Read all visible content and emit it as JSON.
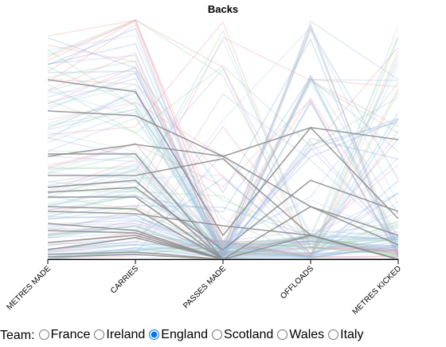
{
  "chart_data": {
    "type": "parallel-coordinates",
    "title": "Backs",
    "axes": [
      "METRES MADE",
      "CARRIES",
      "PASSES MADE",
      "OFFLOADS",
      "METRES KICKED"
    ],
    "normalized_axes": true,
    "selected_team": "England",
    "highlight_color": "#8c8c8c",
    "background_colors": {
      "France": "#7aa6d6",
      "Ireland": "#8ccfa0",
      "Scotland": "#9db4e6",
      "Wales": "#e89aa6",
      "Italy": "#a9d0ec"
    },
    "series": [
      {
        "team": "England",
        "values": [
          0.75,
          0.7,
          0.1,
          0.55,
          0.5
        ]
      },
      {
        "team": "England",
        "values": [
          0.62,
          0.6,
          0.43,
          0.55,
          0.17
        ]
      },
      {
        "team": "England",
        "values": [
          0.43,
          0.48,
          0.43,
          0.22,
          0.1
        ]
      },
      {
        "team": "England",
        "values": [
          0.44,
          0.44,
          0.0,
          0.0,
          0.0
        ]
      },
      {
        "team": "England",
        "values": [
          0.35,
          0.35,
          0.42,
          0.1,
          0.0
        ]
      },
      {
        "team": "England",
        "values": [
          0.3,
          0.33,
          0.0,
          0.0,
          0.0
        ]
      },
      {
        "team": "England",
        "values": [
          0.28,
          0.3,
          0.04,
          0.33,
          0.2
        ]
      },
      {
        "team": "England",
        "values": [
          0.26,
          0.26,
          0.0,
          0.0,
          0.0
        ]
      },
      {
        "team": "England",
        "values": [
          0.22,
          0.21,
          0.0,
          0.0,
          0.0
        ]
      },
      {
        "team": "England",
        "values": [
          0.2,
          0.19,
          0.14,
          0.1,
          0.0
        ]
      },
      {
        "team": "England",
        "values": [
          0.15,
          0.12,
          0.0,
          0.22,
          0.06
        ]
      },
      {
        "team": "England",
        "values": [
          0.12,
          0.11,
          0.0,
          0.1,
          0.0
        ]
      },
      {
        "team": "England",
        "values": [
          0.07,
          0.1,
          0.0,
          0.0,
          0.0
        ]
      },
      {
        "team": "England",
        "values": [
          0.04,
          0.09,
          0.0,
          0.0,
          0.0
        ]
      },
      {
        "team": "England",
        "values": [
          0.02,
          0.03,
          0.0,
          0.0,
          0.0
        ]
      },
      {
        "team": "England",
        "values": [
          0.01,
          0.02,
          0.0,
          0.0,
          0.0
        ]
      },
      {
        "team": "England",
        "values": [
          0.0,
          0.0,
          0.0,
          0.0,
          0.0
        ]
      }
    ]
  },
  "controls": {
    "team_label": "Team:",
    "options": [
      {
        "label": "France",
        "checked": false
      },
      {
        "label": "Ireland",
        "checked": false
      },
      {
        "label": "England",
        "checked": true
      },
      {
        "label": "Scotland",
        "checked": false
      },
      {
        "label": "Wales",
        "checked": false
      },
      {
        "label": "Italy",
        "checked": false
      }
    ]
  }
}
